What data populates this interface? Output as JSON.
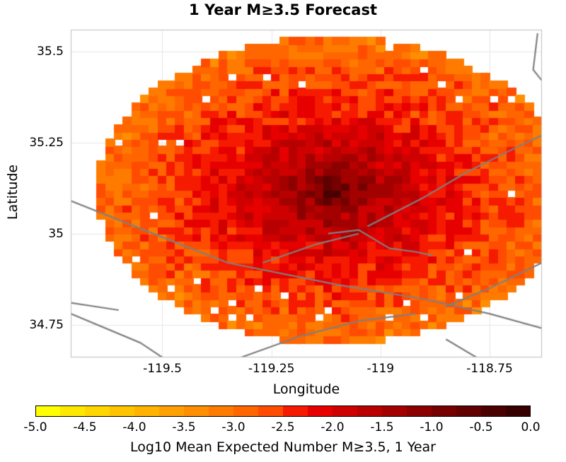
{
  "title": "1 Year M≥3.5 Forecast",
  "axes": {
    "xlabel": "Longitude",
    "ylabel": "Latitude",
    "xlim": [
      -119.71,
      -118.63
    ],
    "ylim": [
      34.66,
      35.56
    ],
    "xticks": [
      {
        "value": -119.5,
        "label": "-119.5"
      },
      {
        "value": -119.25,
        "label": "-119.25"
      },
      {
        "value": -119.0,
        "label": "-119"
      },
      {
        "value": -118.75,
        "label": "-118.75"
      }
    ],
    "yticks": [
      {
        "value": 35.5,
        "label": "35.5"
      },
      {
        "value": 35.25,
        "label": "35.25"
      },
      {
        "value": 35.0,
        "label": "35"
      },
      {
        "value": 34.75,
        "label": "34.75"
      }
    ],
    "grid": true
  },
  "forecast_grid": {
    "center": {
      "lon": -119.11,
      "lat": 35.12
    },
    "radius_deg": {
      "lon": 0.54,
      "lat": 0.42
    },
    "cell_deg": 0.02,
    "peak_log10": -0.1,
    "edge_log10": -4.6
  },
  "colorbar": {
    "label": "Log10 Mean Expected Number M≥3.5, 1 Year",
    "min": -5.0,
    "max": 0.0,
    "step": 0.25,
    "ticks": [
      "-5.0",
      "-4.5",
      "-4.0",
      "-3.5",
      "-3.0",
      "-2.5",
      "-2.0",
      "-1.5",
      "-1.0",
      "-0.5",
      "0.0"
    ],
    "colors": [
      "#ffff00",
      "#ffe800",
      "#ffd600",
      "#ffc400",
      "#ffb300",
      "#ffa000",
      "#ff8f00",
      "#ff7b00",
      "#ff6600",
      "#ff4c00",
      "#f51a00",
      "#e60000",
      "#cf0000",
      "#b90000",
      "#a30000",
      "#8c0000",
      "#760000",
      "#600000",
      "#4a0000",
      "#360000"
    ]
  },
  "faults": [
    [
      [
        -119.71,
        35.09
      ],
      [
        -119.5,
        34.99
      ],
      [
        -119.35,
        34.92
      ],
      [
        -119.1,
        34.86
      ],
      [
        -118.9,
        34.82
      ],
      [
        -118.75,
        34.78
      ],
      [
        -118.63,
        34.74
      ]
    ],
    [
      [
        -119.12,
        35.0
      ],
      [
        -119.05,
        35.01
      ],
      [
        -118.98,
        34.96
      ],
      [
        -118.92,
        34.95
      ],
      [
        -118.88,
        34.94
      ]
    ],
    [
      [
        -119.03,
        35.02
      ],
      [
        -118.9,
        35.1
      ],
      [
        -118.8,
        35.17
      ],
      [
        -118.7,
        35.23
      ],
      [
        -118.63,
        35.27
      ]
    ],
    [
      [
        -119.27,
        34.92
      ],
      [
        -119.15,
        34.97
      ],
      [
        -119.05,
        35.0
      ]
    ],
    [
      [
        -119.71,
        34.81
      ],
      [
        -119.6,
        34.79
      ]
    ],
    [
      [
        -119.71,
        34.78
      ],
      [
        -119.55,
        34.7
      ],
      [
        -119.5,
        34.66
      ]
    ],
    [
      [
        -119.32,
        34.66
      ],
      [
        -119.18,
        34.72
      ],
      [
        -119.05,
        34.76
      ],
      [
        -118.92,
        34.78
      ]
    ],
    [
      [
        -118.85,
        34.8
      ],
      [
        -118.75,
        34.85
      ],
      [
        -118.63,
        34.92
      ]
    ],
    [
      [
        -118.85,
        34.71
      ],
      [
        -118.78,
        34.66
      ]
    ],
    [
      [
        -118.64,
        35.55
      ],
      [
        -118.65,
        35.45
      ],
      [
        -118.63,
        35.42
      ]
    ]
  ]
}
